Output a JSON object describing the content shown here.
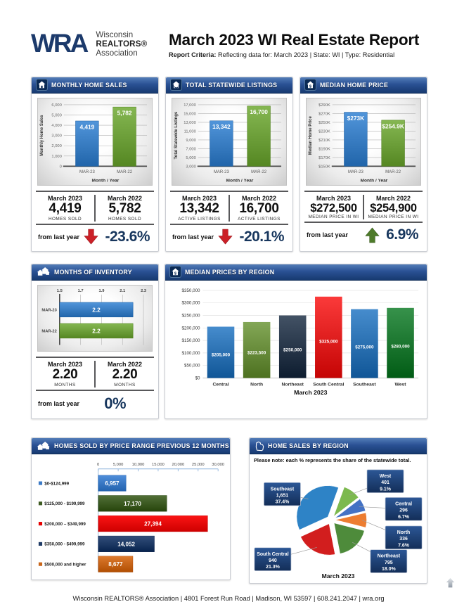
{
  "header": {
    "logo": {
      "acronym": "WRA",
      "org_lines": [
        "Wisconsin",
        "REALTORS®",
        "Association"
      ]
    },
    "title": "March 2023 WI Real Estate Report",
    "criteria_label": "Report Criteria:",
    "criteria_text": "Reflecting data for: March 2023 | State: WI | Type: Residential"
  },
  "panels": {
    "monthly_home_sales": {
      "title": "MONTHLY HOME SALES",
      "col1": {
        "period": "March 2023",
        "value": "4,419",
        "caption": "HOMES SOLD"
      },
      "col2": {
        "period": "March 2022",
        "value": "5,782",
        "caption": "HOMES SOLD"
      },
      "change": {
        "label": "from last year",
        "value": "-23.6%",
        "direction": "down"
      }
    },
    "total_statewide_listings": {
      "title": "TOTAL STATEWIDE LISTINGS",
      "col1": {
        "period": "March 2023",
        "value": "13,342",
        "caption": "ACTIVE LISTINGS"
      },
      "col2": {
        "period": "March 2022",
        "value": "16,700",
        "caption": "ACTIVE LISTINGS"
      },
      "change": {
        "label": "from last year",
        "value": "-20.1%",
        "direction": "down"
      }
    },
    "median_home_price": {
      "title": "MEDIAN HOME PRICE",
      "col1": {
        "period": "March 2023",
        "value": "$272,500",
        "caption": "MEDIAN PRICE IN WI"
      },
      "col2": {
        "period": "March 2022",
        "value": "$254,900",
        "caption": "MEDIAN PRICE IN WI"
      },
      "change": {
        "label": "from last year",
        "value": "6.9%",
        "direction": "up"
      }
    },
    "months_of_inventory": {
      "title": "MONTHS OF INVENTORY",
      "col1": {
        "period": "March 2023",
        "value": "2.20",
        "caption": "MONTHS"
      },
      "col2": {
        "period": "March 2022",
        "value": "2.20",
        "caption": "MONTHS"
      },
      "change": {
        "label": "from last year",
        "value": "0%",
        "direction": "none"
      }
    },
    "median_prices_by_region": {
      "title": "MEDIAN PRICES BY REGION"
    },
    "homes_sold_by_price_range": {
      "title": "HOMES SOLD BY PRICE RANGE PREVIOUS 12 MONTHS"
    },
    "home_sales_by_region": {
      "title": "HOME SALES BY REGION",
      "note": "Please note: each % represents the share of the statewide total.",
      "caption": "March 2023"
    }
  },
  "chart_data": [
    {
      "id": "monthly_home_sales",
      "type": "bar",
      "title": "MONTHLY HOME SALES",
      "categories": [
        "MAR-23",
        "MAR-22"
      ],
      "values": [
        4419,
        5782
      ],
      "bar_labels": [
        "4,419",
        "5,782"
      ],
      "colors": [
        "#3B7FC4",
        "#6FA13C"
      ],
      "ylabel": "Monthly Home Sales",
      "xlabel": "Month / Year",
      "ylim": [
        0,
        6000
      ],
      "ytick_labels": [
        "0",
        "1,000",
        "2,000",
        "3,000",
        "4,000",
        "5,000",
        "6,000"
      ]
    },
    {
      "id": "total_statewide_listings",
      "type": "bar",
      "title": "TOTAL STATEWIDE LISTINGS",
      "categories": [
        "MAR-23",
        "MAR-22"
      ],
      "values": [
        13342,
        16700
      ],
      "bar_labels": [
        "13,342",
        "16,700"
      ],
      "colors": [
        "#3B7FC4",
        "#6FA13C"
      ],
      "ylabel": "Total Statewide Listings",
      "xlabel": "Month / Year",
      "ylim": [
        3000,
        17000
      ],
      "ytick_labels": [
        "3,000",
        "5,000",
        "7,000",
        "9,000",
        "11,000",
        "13,000",
        "15,000",
        "17,000"
      ]
    },
    {
      "id": "median_home_price",
      "type": "bar",
      "title": "MEDIAN HOME PRICE",
      "categories": [
        "MAR-23",
        "MAR-22"
      ],
      "values": [
        273000,
        254900
      ],
      "bar_labels": [
        "$273K",
        "$254.9K"
      ],
      "colors": [
        "#3B7FC4",
        "#6FA13C"
      ],
      "ylabel": "Median Home Price",
      "xlabel": "Month / Year",
      "ylim": [
        150000,
        290000
      ],
      "ytick_labels": [
        "$150K",
        "$170K",
        "$190K",
        "$210K",
        "$230K",
        "$250K",
        "$270K",
        "$290K"
      ]
    },
    {
      "id": "months_of_inventory",
      "type": "hbar",
      "title": "MONTHS OF INVENTORY",
      "categories": [
        "MAR-23",
        "MAR-22"
      ],
      "values": [
        2.2,
        2.2
      ],
      "bar_labels": [
        "2.2",
        "2.2"
      ],
      "colors": [
        "#3B7FC4",
        "#6FA13C"
      ],
      "xlim": [
        1.5,
        2.3
      ],
      "xtick_labels": [
        "1.5",
        "1.7",
        "1.9",
        "2.1",
        "2.3"
      ]
    },
    {
      "id": "median_prices_by_region",
      "type": "bar",
      "title": "MEDIAN PRICES BY REGION",
      "categories": [
        "Central",
        "North",
        "Northeast",
        "South Central",
        "Southeast",
        "West"
      ],
      "values": [
        205000,
        223500,
        250000,
        325000,
        275000,
        280000
      ],
      "bar_labels": [
        "$205,000",
        "$223,500",
        "$250,000",
        "$325,000",
        "$275,000",
        "$280,000"
      ],
      "colors": [
        "#2E74B5",
        "#6B8F3E",
        "#2B3A4D",
        "#E32222",
        "#2E74B5",
        "#1F7A33"
      ],
      "xlabel": "March 2023",
      "ylim": [
        0,
        350000
      ],
      "ytick_labels": [
        "$0",
        "$50,000",
        "$100,000",
        "$150,000",
        "$200,000",
        "$250,000",
        "$300,000",
        "$350,000"
      ]
    },
    {
      "id": "homes_sold_by_price_range",
      "type": "hbar",
      "title": "HOMES SOLD BY PRICE RANGE PREVIOUS 12 MONTHS",
      "categories": [
        "$0-$124,999",
        "$125,000 - $199,999",
        "$200,000 – $349,999",
        "$350,000 - $499,999",
        "$500,000 and higher"
      ],
      "values": [
        6957,
        17170,
        27394,
        14052,
        8677
      ],
      "bar_labels": [
        "6,957",
        "17,170",
        "27,394",
        "14,052",
        "8,677"
      ],
      "colors": [
        "#3B7AC6",
        "#3E5C23",
        "#E60000",
        "#1F3B66",
        "#C9661A"
      ],
      "xlim": [
        0,
        30000
      ],
      "xtick_labels": [
        "0",
        "5,000",
        "10,000",
        "15,000",
        "20,000",
        "25,000",
        "30,000"
      ]
    },
    {
      "id": "home_sales_by_region",
      "type": "pie",
      "title": "HOME SALES BY REGION",
      "note": "Please note: each % represents the share of the statewide total.",
      "caption": "March 2023",
      "slices": [
        {
          "name": "West",
          "value": "401",
          "value_num": 401,
          "pct": "9.1%",
          "color": "#7CB94E"
        },
        {
          "name": "Central",
          "value": "296",
          "value_num": 296,
          "pct": "6.7%",
          "color": "#4472C4"
        },
        {
          "name": "North",
          "value": "336",
          "value_num": 336,
          "pct": "7.6%",
          "color": "#ED7D31"
        },
        {
          "name": "Northeast",
          "value": "795",
          "value_num": 795,
          "pct": "18.0%",
          "color": "#4E8B3B"
        },
        {
          "name": "South Central",
          "value": "940",
          "value_num": 940,
          "pct": "21.3%",
          "color": "#D21E1E"
        },
        {
          "name": "Southeast",
          "value": "1,651",
          "value_num": 1651,
          "pct": "37.4%",
          "color": "#2E83C6"
        }
      ]
    }
  ],
  "footer": "Wisconsin REALTORS® Association | 4801 Forest Run Road | Madison, WI 53597 | 608.241.2047 | wra.org"
}
